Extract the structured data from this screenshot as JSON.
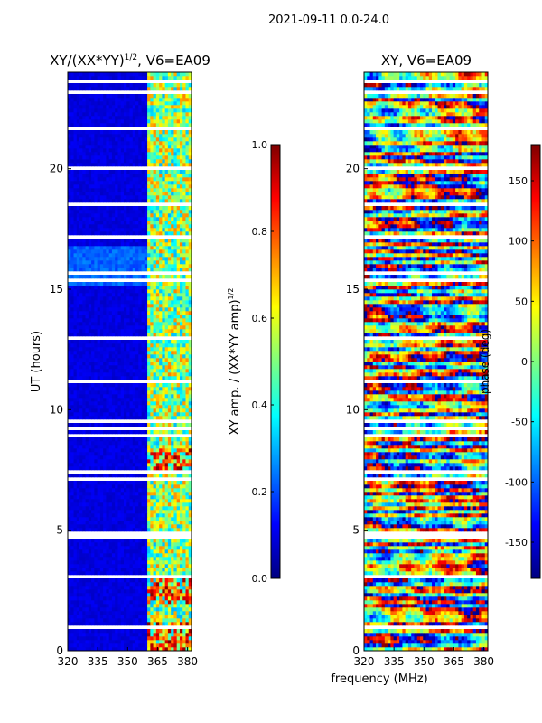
{
  "figure": {
    "suptitle": "2021-09-11 0.0-24.0",
    "shared_xlabel": "frequency (MHz)"
  },
  "chart_data": [
    {
      "type": "heatmap",
      "title_main": "XY/(XX*YY)",
      "title_sup": "1/2",
      "title_rest": ", V6=EA09",
      "xlabel": "frequency (MHz)",
      "ylabel": "UT (hours)",
      "xlim": [
        320,
        382
      ],
      "ylim": [
        0,
        24
      ],
      "xticks": [
        320,
        335,
        350,
        365,
        380
      ],
      "yticks": [
        0,
        5,
        10,
        15,
        20
      ],
      "colorbar": {
        "label_main": "XY amp. / (XX*YY amp)",
        "label_sup": "1/2",
        "range": [
          0.0,
          1.0
        ],
        "ticks": [
          "0.0",
          "0.2",
          "0.4",
          "0.6",
          "0.8",
          "1.0"
        ],
        "colormap": "jet"
      }
    },
    {
      "type": "heatmap",
      "title": "XY, V6=EA09",
      "xlabel": "frequency (MHz)",
      "ylabel": "",
      "xlim": [
        320,
        382
      ],
      "ylim": [
        0,
        24
      ],
      "xticks": [
        320,
        335,
        350,
        365,
        380
      ],
      "yticks": [
        0,
        5,
        10,
        15,
        20
      ],
      "colorbar": {
        "label": "phase (deg)",
        "range": [
          -180,
          180
        ],
        "ticks": [
          "-150",
          "-100",
          "-50",
          "0",
          "50",
          "100",
          "150"
        ],
        "colormap": "jet"
      }
    }
  ],
  "colors": {
    "jet": [
      "#00007f",
      "#0000ff",
      "#007fff",
      "#00ffff",
      "#7fff7f",
      "#ffff00",
      "#ff7f00",
      "#ff0000",
      "#7f0000"
    ]
  }
}
